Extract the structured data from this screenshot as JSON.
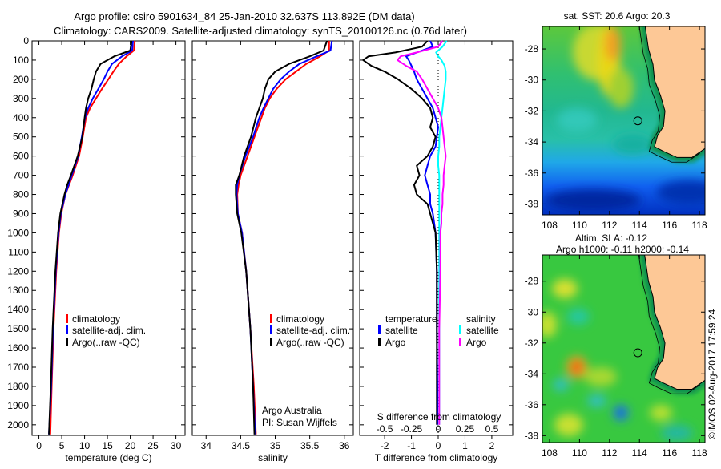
{
  "header": {
    "title_line1": "Argo profile: csiro 5901634_84 25-Jan-2010 32.637S 113.892E (DM data)",
    "title_line2": "Climatology: CARS2009. Satellite-adjusted climatology: synTS_20100126.nc (0.76d later)"
  },
  "colors": {
    "climatology": "#ff0000",
    "satellite_t": "#0000ff",
    "argo_t": "#000000",
    "satellite_s": "#00ffff",
    "argo_s": "#ff00ff"
  },
  "chart_data": [
    {
      "type": "line",
      "id": "temperature",
      "xlabel": "temperature (deg C)",
      "ylabel": "",
      "xlim": [
        -1.5,
        32
      ],
      "ylim": [
        2055,
        0
      ],
      "xticks": [
        0,
        5,
        10,
        15,
        20,
        25,
        30
      ],
      "yticks": [
        0,
        100,
        200,
        300,
        400,
        500,
        600,
        700,
        800,
        900,
        1000,
        1100,
        1200,
        1300,
        1400,
        1500,
        1600,
        1700,
        1800,
        1900,
        2000
      ],
      "legend": [
        "climatology",
        "satellite-adj. clim.",
        "Argo(..raw -QC)"
      ],
      "depth": [
        0,
        50,
        80,
        120,
        160,
        200,
        250,
        300,
        350,
        400,
        500,
        600,
        700,
        750,
        800,
        900,
        1000,
        1200,
        1500,
        1800,
        2050
      ],
      "series": [
        {
          "name": "climatology",
          "color": "#ff0000",
          "values": [
            21,
            20.8,
            19.2,
            17.5,
            16.3,
            15.2,
            13.8,
            12.5,
            11.2,
            10.3,
            9.6,
            8.8,
            7.4,
            6.6,
            5.8,
            4.9,
            4.4,
            3.8,
            3.2,
            2.8,
            2.5
          ]
        },
        {
          "name": "satellite-adj. clim.",
          "color": "#0000ff",
          "values": [
            20.6,
            20.4,
            18.2,
            16,
            15,
            14.2,
            13,
            11.8,
            10.8,
            10.1,
            9.4,
            8.6,
            7.2,
            6.5,
            5.8,
            4.8,
            4.3,
            3.7,
            3.1,
            2.7,
            2.2
          ]
        },
        {
          "name": "Argo(..raw -QC)",
          "color": "#000000",
          "values": [
            20.3,
            20,
            16.5,
            13.5,
            12.5,
            12,
            11.5,
            10.8,
            10.3,
            10,
            9.5,
            8.5,
            7,
            6.2,
            5.6,
            4.7,
            4.2,
            3.6,
            3.0,
            2.6,
            2.2
          ]
        }
      ]
    },
    {
      "type": "line",
      "id": "salinity",
      "xlabel": "salinity",
      "xlim": [
        33.8,
        36.13
      ],
      "ylim": [
        2055,
        0
      ],
      "xticks": [
        34,
        34.5,
        35,
        35.5,
        36
      ],
      "legend": [
        "climatology",
        "satellite-adj. clim.",
        "Argo(..raw -QC)"
      ],
      "annotation": [
        "Argo Australia",
        "PI: Susan Wijffels"
      ],
      "depth": [
        0,
        50,
        80,
        120,
        160,
        200,
        250,
        300,
        350,
        400,
        500,
        600,
        700,
        750,
        800,
        900,
        1000,
        1200,
        1500,
        1800,
        2050
      ],
      "series": [
        {
          "name": "climatology",
          "color": "#ff0000",
          "values": [
            35.78,
            35.78,
            35.65,
            35.45,
            35.3,
            35.15,
            35.02,
            34.92,
            34.85,
            34.8,
            34.7,
            34.6,
            34.5,
            34.47,
            34.45,
            34.46,
            34.52,
            34.58,
            34.64,
            34.69,
            34.72
          ]
        },
        {
          "name": "satellite-adj. clim.",
          "color": "#0000ff",
          "values": [
            35.82,
            35.8,
            35.6,
            35.35,
            35.2,
            35.08,
            34.97,
            34.9,
            34.83,
            34.77,
            34.68,
            34.57,
            34.48,
            34.45,
            34.44,
            34.46,
            34.52,
            34.58,
            34.64,
            34.68,
            34.71
          ]
        },
        {
          "name": "Argo(..raw -QC)",
          "color": "#000000",
          "values": [
            35.75,
            35.7,
            35.5,
            35.2,
            35.0,
            34.9,
            34.85,
            34.82,
            34.77,
            34.72,
            34.65,
            34.55,
            34.48,
            34.43,
            34.43,
            34.45,
            34.51,
            34.58,
            34.64,
            34.68,
            34.7
          ]
        }
      ]
    },
    {
      "type": "line",
      "id": "differences",
      "xlabel": "T difference from climatology",
      "x2label": "S difference from climatology",
      "xlim": [
        -2.93,
        2.78
      ],
      "ylim": [
        2055,
        0
      ],
      "xticks": [
        -2,
        -1,
        0,
        1,
        2
      ],
      "x2ticks": [
        "-0.5",
        "-0.25",
        "0",
        "0.25",
        "0.5"
      ],
      "x2tick_values": [
        -0.5,
        -0.25,
        0,
        0.25,
        0.5
      ],
      "s_to_t_scale": 4,
      "legend_temperature": {
        "title": "temperature",
        "items": [
          "satellite",
          "Argo"
        ]
      },
      "legend_salinity": {
        "title": "salinity",
        "items": [
          "satellite",
          "Argo"
        ]
      },
      "depth": [
        0,
        30,
        60,
        80,
        100,
        130,
        160,
        200,
        250,
        300,
        350,
        400,
        450,
        500,
        550,
        600,
        650,
        700,
        750,
        800,
        850,
        900,
        950,
        1000,
        1200,
        1500,
        1800,
        2000
      ],
      "series": [
        {
          "name": "T satellite",
          "kind": "T",
          "color": "#0000ff",
          "values": [
            -0.3,
            -0.2,
            -0.8,
            -1.2,
            -1.1,
            -1.0,
            -0.9,
            -0.8,
            -0.6,
            -0.4,
            -0.2,
            -0.1,
            0,
            -0.05,
            -0.1,
            -0.3,
            -0.4,
            -0.5,
            -0.4,
            -0.3,
            -0.3,
            -0.2,
            -0.15,
            -0.1,
            -0.05,
            -0.05,
            -0.03,
            -0.03
          ]
        },
        {
          "name": "T Argo",
          "kind": "T",
          "color": "#000000",
          "values": [
            -0.4,
            -0.6,
            -1.6,
            -2.6,
            -2.8,
            -2.5,
            -2.0,
            -1.5,
            -1.0,
            -0.6,
            -0.3,
            -0.2,
            -0.3,
            -0.1,
            -0.2,
            -0.4,
            -0.8,
            -0.7,
            -0.9,
            -0.8,
            -0.4,
            -0.3,
            -0.2,
            -0.1,
            -0.05,
            -0.05,
            -0.05,
            -0.05
          ]
        },
        {
          "name": "S satellite",
          "kind": "S",
          "color": "#00ffff",
          "values": [
            0.08,
            0.04,
            -0.02,
            0,
            0.03,
            0.06,
            0.07,
            0.07,
            0.06,
            0.05,
            0.04,
            0.03,
            0.02,
            0.01,
            0.01,
            0,
            0,
            0.01,
            0.01,
            0.01,
            0.01,
            0.01,
            0.01,
            0.01,
            0.01,
            0.01,
            0.01,
            0.01
          ]
        },
        {
          "name": "S Argo",
          "kind": "S",
          "color": "#ff00ff",
          "values": [
            0.04,
            0,
            -0.2,
            -0.35,
            -0.38,
            -0.3,
            -0.2,
            -0.15,
            -0.1,
            -0.05,
            0,
            0.03,
            0.04,
            0.05,
            0.06,
            0.07,
            0.06,
            0.05,
            0.05,
            0.04,
            0.04,
            0.03,
            0.03,
            0.02,
            0.02,
            0.01,
            0.01,
            0.01
          ]
        }
      ]
    }
  ],
  "maps": [
    {
      "id": "sst",
      "title": "sat. SST: 20.6  Argo: 20.3",
      "lon_ticks": [
        108,
        110,
        112,
        114,
        116,
        118
      ],
      "lat_ticks": [
        -28,
        -30,
        -32,
        -34,
        -36,
        -38
      ],
      "marker": {
        "lon": 113.892,
        "lat": -32.637
      }
    },
    {
      "id": "sla",
      "title": "Altim. SLA: -0.12",
      "subtitle": "Argo h1000: -0.11 h2000: -0.14",
      "lon_ticks": [
        108,
        110,
        112,
        114,
        116,
        118
      ],
      "lat_ticks": [
        -28,
        -30,
        -32,
        -34,
        -36,
        -38
      ],
      "marker": {
        "lon": 113.892,
        "lat": -32.637
      }
    }
  ],
  "footer": {
    "credit": "©IMOS 02-Aug-2017 17:59:24"
  }
}
